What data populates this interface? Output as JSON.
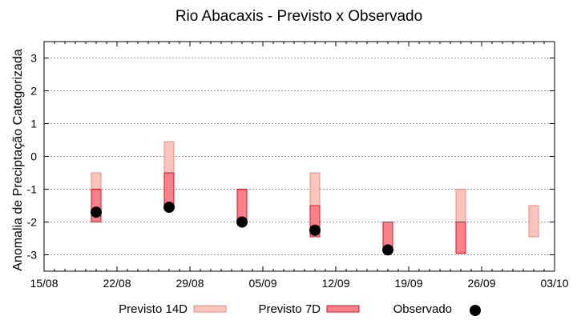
{
  "chart_data": {
    "type": "range-bar+scatter",
    "title": "Rio Abacaxis - Previsto x Observado",
    "ylabel": "Anomalia de Preciptação Categorizada",
    "xlabel": "",
    "ylim": [
      -3.5,
      3.5
    ],
    "yticks": [
      3,
      2,
      1,
      0,
      -1,
      -2,
      -3
    ],
    "xlim": [
      "2022-08-15",
      "2022-10-03"
    ],
    "xticks": [
      {
        "date": "2022-08-15",
        "label": "15/08"
      },
      {
        "date": "2022-08-22",
        "label": "22/08"
      },
      {
        "date": "2022-08-29",
        "label": "29/08"
      },
      {
        "date": "2022-09-05",
        "label": "05/09"
      },
      {
        "date": "2022-09-12",
        "label": "12/09"
      },
      {
        "date": "2022-09-19",
        "label": "19/09"
      },
      {
        "date": "2022-09-26",
        "label": "26/09"
      },
      {
        "date": "2022-10-03",
        "label": "03/10"
      }
    ],
    "grid": true,
    "legend_position": "bottom",
    "series": [
      {
        "name": "Previsto 14D",
        "kind": "range",
        "fill": "#f9c4bc",
        "stroke": "#f08a80",
        "points": [
          {
            "date": "2022-08-20",
            "low": -2.0,
            "high": -0.5
          },
          {
            "date": "2022-08-27",
            "low": -0.5,
            "high": 0.45
          },
          {
            "date": "2022-09-10",
            "low": -1.5,
            "high": -0.5
          },
          {
            "date": "2022-09-24",
            "low": -2.0,
            "high": -1.0
          },
          {
            "date": "2022-10-01",
            "low": -2.45,
            "high": -1.5
          }
        ]
      },
      {
        "name": "Previsto 7D",
        "kind": "range",
        "fill": "#f9828a",
        "stroke": "#dd1020",
        "points": [
          {
            "date": "2022-08-20",
            "low": -2.0,
            "high": -1.0
          },
          {
            "date": "2022-08-27",
            "low": -1.5,
            "high": -0.5
          },
          {
            "date": "2022-09-03",
            "low": -2.0,
            "high": -1.0
          },
          {
            "date": "2022-09-10",
            "low": -2.45,
            "high": -1.5
          },
          {
            "date": "2022-09-17",
            "low": -2.85,
            "high": -2.0
          },
          {
            "date": "2022-09-24",
            "low": -2.95,
            "high": -2.0
          }
        ]
      },
      {
        "name": "Observado",
        "kind": "point",
        "fill": "#000000",
        "points": [
          {
            "date": "2022-08-20",
            "value": -1.7
          },
          {
            "date": "2022-08-27",
            "value": -1.55
          },
          {
            "date": "2022-09-03",
            "value": -2.0
          },
          {
            "date": "2022-09-10",
            "value": -2.25
          },
          {
            "date": "2022-09-17",
            "value": -2.85
          }
        ]
      }
    ]
  }
}
